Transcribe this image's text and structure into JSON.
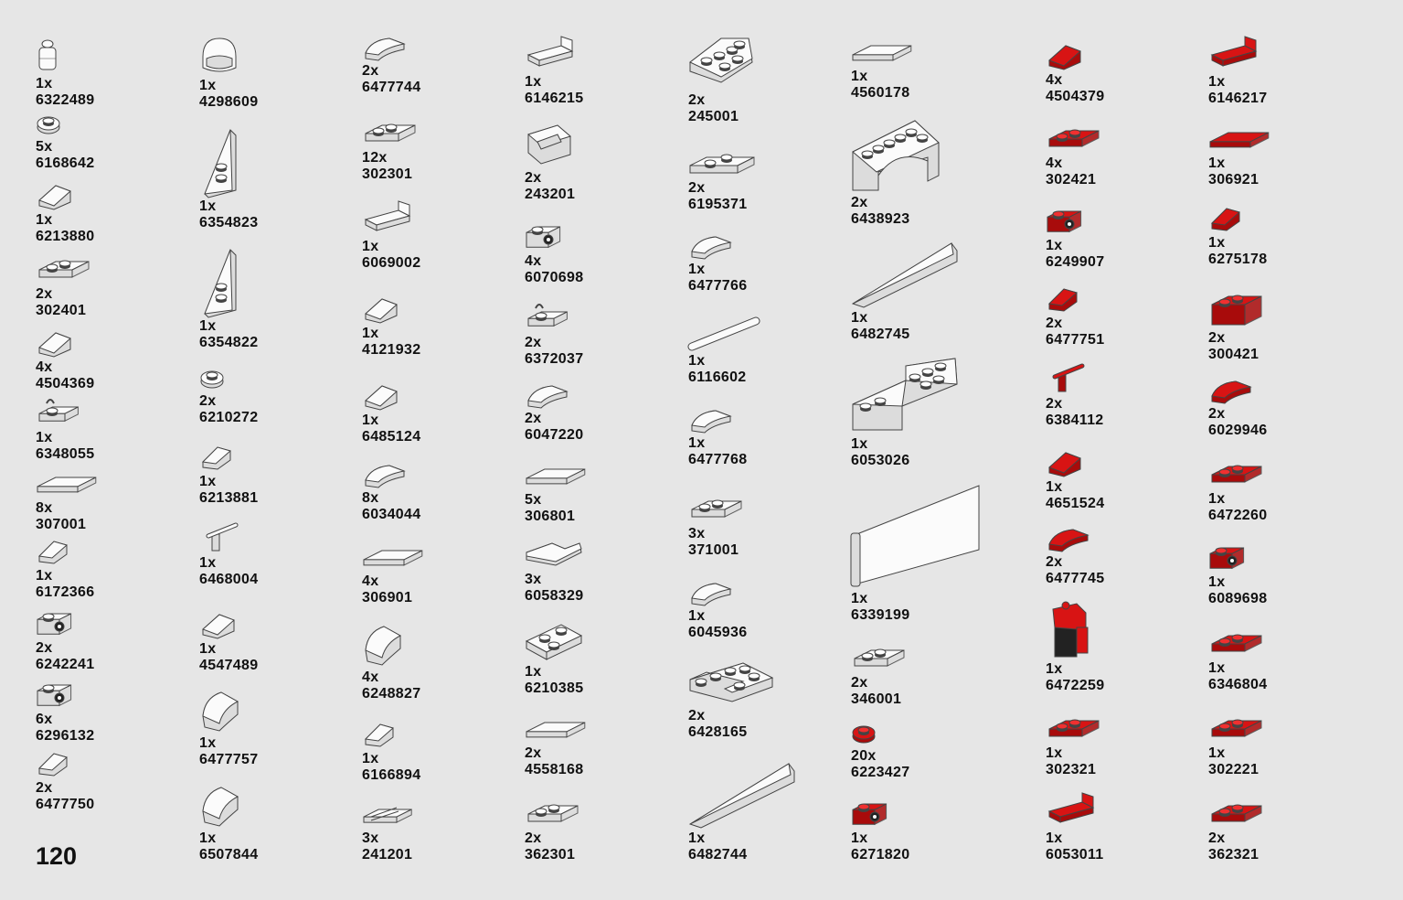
{
  "page_number": "120",
  "colors": {
    "white_fill": "#fbfbfb",
    "white_side": "#dcdcdc",
    "red_fill": "#d81414",
    "red_side": "#a80b0b",
    "outline": "#444444",
    "stud_top": "#ffffff"
  },
  "columns": [
    [
      {
        "qty": "1x",
        "code": "6322489",
        "color": "white",
        "icon": "minifig-head-icon"
      },
      {
        "qty": "5x",
        "code": "6168642",
        "color": "white",
        "icon": "round-plate-icon"
      },
      {
        "qty": "1x",
        "code": "6213880",
        "color": "white",
        "icon": "slope-icon"
      },
      {
        "qty": "2x",
        "code": "302401",
        "color": "white",
        "icon": "plate-icon"
      },
      {
        "qty": "4x",
        "code": "4504369",
        "color": "white",
        "icon": "slope-icon"
      },
      {
        "qty": "1x",
        "code": "6348055",
        "color": "white",
        "icon": "clip-plate-icon"
      },
      {
        "qty": "8x",
        "code": "307001",
        "color": "white",
        "icon": "tile-icon"
      },
      {
        "qty": "1x",
        "code": "6172366",
        "color": "white",
        "icon": "wedge-icon"
      },
      {
        "qty": "2x",
        "code": "6242241",
        "color": "white",
        "icon": "side-stud-brick-icon"
      },
      {
        "qty": "6x",
        "code": "6296132",
        "color": "white",
        "icon": "side-stud-brick-icon"
      },
      {
        "qty": "2x",
        "code": "6477750",
        "color": "white",
        "icon": "wedge-icon"
      }
    ],
    [
      {
        "qty": "1x",
        "code": "4298609",
        "color": "white",
        "icon": "helmet-icon"
      },
      {
        "qty": "1x",
        "code": "6354823",
        "color": "white",
        "icon": "wing-plate-icon"
      },
      {
        "qty": "1x",
        "code": "6354822",
        "color": "white",
        "icon": "wing-plate-icon"
      },
      {
        "qty": "2x",
        "code": "6210272",
        "color": "white",
        "icon": "round-plate-icon"
      },
      {
        "qty": "1x",
        "code": "6213881",
        "color": "white",
        "icon": "wedge-icon"
      },
      {
        "qty": "1x",
        "code": "6468004",
        "color": "white",
        "icon": "bar-holder-icon"
      },
      {
        "qty": "1x",
        "code": "4547489",
        "color": "white",
        "icon": "slope-icon"
      },
      {
        "qty": "1x",
        "code": "6477757",
        "color": "white",
        "icon": "curved-slope-icon"
      },
      {
        "qty": "1x",
        "code": "6507844",
        "color": "white",
        "icon": "curved-slope-icon"
      }
    ],
    [
      {
        "qty": "2x",
        "code": "6477744",
        "color": "white",
        "icon": "curved-tile-icon"
      },
      {
        "qty": "12x",
        "code": "302301",
        "color": "white",
        "icon": "plate-icon"
      },
      {
        "qty": "1x",
        "code": "6069002",
        "color": "white",
        "icon": "bracket-icon"
      },
      {
        "qty": "1x",
        "code": "4121932",
        "color": "white",
        "icon": "slope-icon"
      },
      {
        "qty": "1x",
        "code": "6485124",
        "color": "white",
        "icon": "slope-icon"
      },
      {
        "qty": "8x",
        "code": "6034044",
        "color": "white",
        "icon": "curved-tile-icon"
      },
      {
        "qty": "4x",
        "code": "306901",
        "color": "white",
        "icon": "tile-icon"
      },
      {
        "qty": "4x",
        "code": "6248827",
        "color": "white",
        "icon": "curved-slope-icon"
      },
      {
        "qty": "1x",
        "code": "6166894",
        "color": "white",
        "icon": "wedge-icon"
      },
      {
        "qty": "3x",
        "code": "241201",
        "color": "white",
        "icon": "grille-tile-icon"
      }
    ],
    [
      {
        "qty": "1x",
        "code": "6146215",
        "color": "white",
        "icon": "bracket-icon"
      },
      {
        "qty": "2x",
        "code": "243201",
        "color": "white",
        "icon": "frame-icon"
      },
      {
        "qty": "4x",
        "code": "6070698",
        "color": "white",
        "icon": "side-stud-brick-icon"
      },
      {
        "qty": "2x",
        "code": "6372037",
        "color": "white",
        "icon": "clip-plate-icon"
      },
      {
        "qty": "2x",
        "code": "6047220",
        "color": "white",
        "icon": "curved-tile-icon"
      },
      {
        "qty": "5x",
        "code": "306801",
        "color": "white",
        "icon": "tile-icon"
      },
      {
        "qty": "3x",
        "code": "6058329",
        "color": "white",
        "icon": "corner-tile-icon"
      },
      {
        "qty": "1x",
        "code": "6210385",
        "color": "white",
        "icon": "inverted-plate-icon"
      },
      {
        "qty": "2x",
        "code": "4558168",
        "color": "white",
        "icon": "tile-icon"
      },
      {
        "qty": "2x",
        "code": "362301",
        "color": "white",
        "icon": "plate-icon"
      }
    ],
    [
      {
        "qty": "2x",
        "code": "245001",
        "color": "white",
        "icon": "wedge-plate-icon"
      },
      {
        "qty": "2x",
        "code": "6195371",
        "color": "white",
        "icon": "jumper-plate-icon"
      },
      {
        "qty": "1x",
        "code": "6477766",
        "color": "white",
        "icon": "curved-tile-icon"
      },
      {
        "qty": "1x",
        "code": "6116602",
        "color": "white",
        "icon": "bar-icon"
      },
      {
        "qty": "1x",
        "code": "6477768",
        "color": "white",
        "icon": "curved-tile-icon"
      },
      {
        "qty": "3x",
        "code": "371001",
        "color": "white",
        "icon": "plate-icon"
      },
      {
        "qty": "1x",
        "code": "6045936",
        "color": "white",
        "icon": "curved-tile-icon"
      },
      {
        "qty": "2x",
        "code": "6428165",
        "color": "white",
        "icon": "corner-plate-icon"
      },
      {
        "qty": "1x",
        "code": "6482744",
        "color": "white",
        "icon": "long-wedge-icon"
      }
    ],
    [
      {
        "qty": "1x",
        "code": "4560178",
        "color": "white",
        "icon": "tile-icon"
      },
      {
        "qty": "2x",
        "code": "6438923",
        "color": "white",
        "icon": "arch-icon"
      },
      {
        "qty": "1x",
        "code": "6482745",
        "color": "white",
        "icon": "long-wedge-icon"
      },
      {
        "qty": "1x",
        "code": "6053026",
        "color": "white",
        "icon": "step-brick-icon"
      },
      {
        "qty": "1x",
        "code": "6339199",
        "color": "white",
        "icon": "panel-icon"
      },
      {
        "qty": "2x",
        "code": "346001",
        "color": "white",
        "icon": "plate-icon"
      },
      {
        "qty": "20x",
        "code": "6223427",
        "color": "red",
        "icon": "round-plate-icon"
      },
      {
        "qty": "1x",
        "code": "6271820",
        "color": "red",
        "icon": "side-stud-brick-icon"
      }
    ],
    [
      {
        "qty": "4x",
        "code": "4504379",
        "color": "red",
        "icon": "slope-icon"
      },
      {
        "qty": "4x",
        "code": "302421",
        "color": "red",
        "icon": "plate-icon"
      },
      {
        "qty": "1x",
        "code": "6249907",
        "color": "red",
        "icon": "side-stud-brick-icon"
      },
      {
        "qty": "2x",
        "code": "6477751",
        "color": "red",
        "icon": "wedge-icon"
      },
      {
        "qty": "2x",
        "code": "6384112",
        "color": "red",
        "icon": "bar-holder-icon"
      },
      {
        "qty": "1x",
        "code": "4651524",
        "color": "red",
        "icon": "slope-icon"
      },
      {
        "qty": "2x",
        "code": "6477745",
        "color": "red",
        "icon": "curved-tile-icon"
      },
      {
        "qty": "1x",
        "code": "6472259",
        "color": "red",
        "icon": "minifig-legs-icon"
      },
      {
        "qty": "1x",
        "code": "302321",
        "color": "red",
        "icon": "plate-icon"
      },
      {
        "qty": "1x",
        "code": "6053011",
        "color": "red",
        "icon": "bracket-icon"
      }
    ],
    [
      {
        "qty": "1x",
        "code": "6146217",
        "color": "red",
        "icon": "bracket-icon"
      },
      {
        "qty": "1x",
        "code": "306921",
        "color": "red",
        "icon": "tile-icon"
      },
      {
        "qty": "1x",
        "code": "6275178",
        "color": "red",
        "icon": "wedge-icon"
      },
      {
        "qty": "2x",
        "code": "300421",
        "color": "red",
        "icon": "brick-icon"
      },
      {
        "qty": "2x",
        "code": "6029946",
        "color": "red",
        "icon": "curved-tile-icon"
      },
      {
        "qty": "1x",
        "code": "6472260",
        "color": "red",
        "icon": "plate-icon"
      },
      {
        "qty": "1x",
        "code": "6089698",
        "color": "red",
        "icon": "side-stud-brick-icon"
      },
      {
        "qty": "1x",
        "code": "6346804",
        "color": "red",
        "icon": "plate-icon"
      },
      {
        "qty": "1x",
        "code": "302221",
        "color": "red",
        "icon": "plate-icon"
      },
      {
        "qty": "2x",
        "code": "362321",
        "color": "red",
        "icon": "plate-icon"
      }
    ]
  ]
}
